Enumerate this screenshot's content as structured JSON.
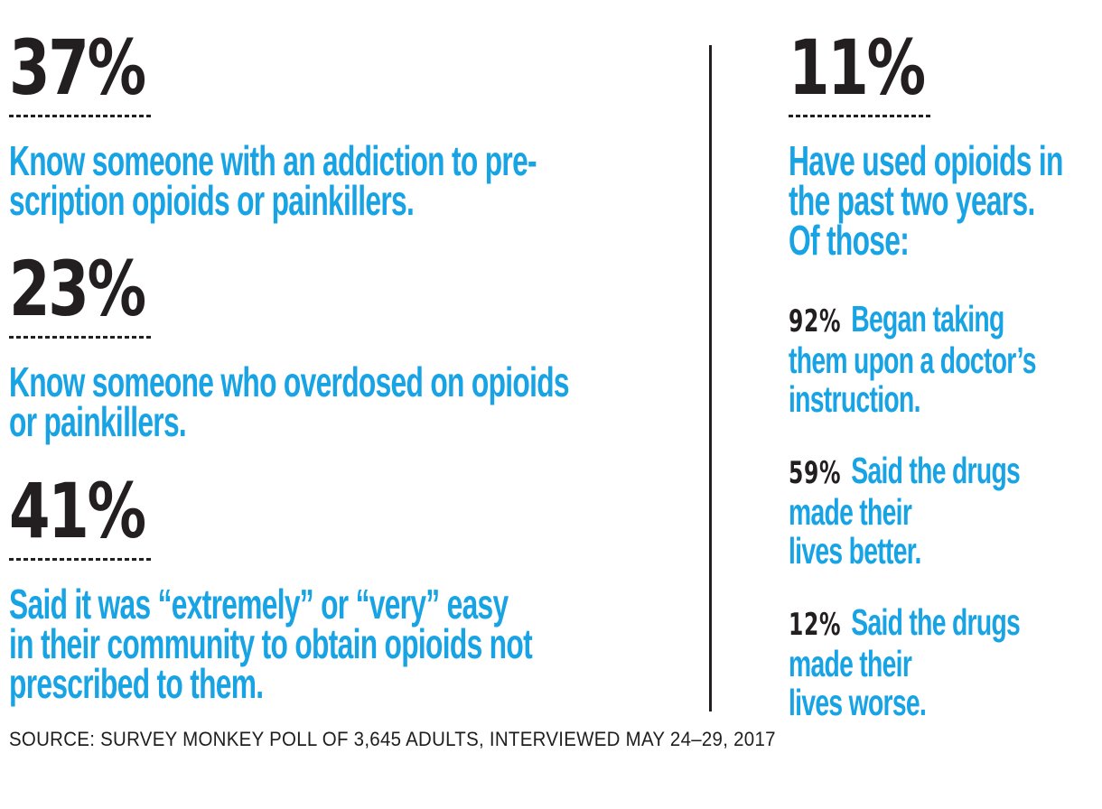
{
  "colors": {
    "accent_blue": "#18A4E4",
    "ink_black": "#231F20"
  },
  "left_column": {
    "stats": [
      {
        "value": "37%",
        "lines": [
          "Know someone with an addiction to pre-",
          "scription opioids or painkillers."
        ]
      },
      {
        "value": "23%",
        "lines": [
          "Know someone who overdosed on opioids",
          "or painkillers."
        ]
      },
      {
        "value": "41%",
        "lines": [
          "Said it was “extremely” or “very” easy",
          "in their community to obtain opioids not",
          "prescribed to them."
        ]
      }
    ]
  },
  "right_column": {
    "lead": {
      "value": "11%",
      "lines": [
        "Have used opioids in",
        "the past two years.",
        "Of those:"
      ]
    },
    "substats": [
      {
        "value": "92%",
        "lines": [
          "Began taking",
          "them upon a doctor’s",
          "instruction."
        ]
      },
      {
        "value": "59%",
        "lines": [
          "Said the drugs",
          "made their",
          "lives better."
        ]
      },
      {
        "value": "12%",
        "lines": [
          "Said the drugs",
          "made their",
          "lives worse."
        ]
      }
    ]
  },
  "source": "SOURCE: SURVEY MONKEY POLL OF 3,645 ADULTS, INTERVIEWED MAY 24–29, 2017",
  "chart_data": {
    "type": "table",
    "title": "",
    "stats": [
      {
        "percent": 37,
        "label": "Know someone with an addiction to prescription opioids or painkillers."
      },
      {
        "percent": 23,
        "label": "Know someone who overdosed on opioids or painkillers."
      },
      {
        "percent": 41,
        "label": "Said it was “extremely” or “very” easy in their community to obtain opioids not prescribed to them."
      },
      {
        "percent": 11,
        "label": "Have used opioids in the past two years."
      },
      {
        "percent": 92,
        "label": "Of those: Began taking them upon a doctor’s instruction."
      },
      {
        "percent": 59,
        "label": "Of those: Said the drugs made their lives better."
      },
      {
        "percent": 12,
        "label": "Of those: Said the drugs made their lives worse."
      }
    ],
    "source": "SOURCE: SURVEY MONKEY POLL OF 3,645 ADULTS, INTERVIEWED MAY 24–29, 2017"
  }
}
